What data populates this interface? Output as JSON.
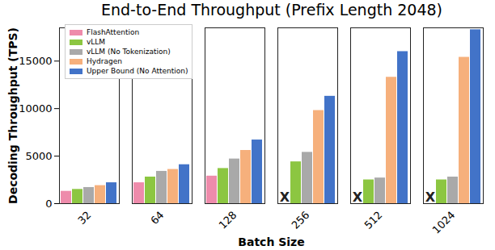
{
  "chart_data": {
    "type": "bar",
    "title": "End-to-End Throughput (Prefix Length 2048)",
    "x_label": "Batch Size",
    "y_label": "Decoding Throughput (TPS)",
    "categories": [
      "32",
      "64",
      "128",
      "256",
      "512",
      "1024"
    ],
    "series": [
      {
        "name": "FlashAttention",
        "color": "#ee8bab",
        "values": [
          1300,
          2200,
          2900,
          null,
          null,
          null
        ]
      },
      {
        "name": "vLLM",
        "color": "#8cc641",
        "values": [
          1500,
          2800,
          3700,
          4400,
          2500,
          2500
        ]
      },
      {
        "name": "vLLM (No Tokenization)",
        "color": "#a9a9a9",
        "values": [
          1700,
          3400,
          4700,
          5400,
          2700,
          2800
        ]
      },
      {
        "name": "Hydragen",
        "color": "#f6b07c",
        "values": [
          1900,
          3600,
          5600,
          9800,
          13300,
          15400
        ]
      },
      {
        "name": "Upper Bound (No Attention)",
        "color": "#4273c8",
        "values": [
          2200,
          4100,
          6700,
          11300,
          16000,
          18300
        ]
      }
    ],
    "annotations": [
      {
        "text": "X",
        "category": "256",
        "series": "FlashAttention"
      },
      {
        "text": "X",
        "category": "512",
        "series": "FlashAttention"
      },
      {
        "text": "X",
        "category": "1024",
        "series": "FlashAttention"
      }
    ],
    "ylim": [
      0,
      18500
    ],
    "yticks": [
      0,
      5000,
      10000,
      15000
    ],
    "legend": "top-left",
    "grid": false
  }
}
